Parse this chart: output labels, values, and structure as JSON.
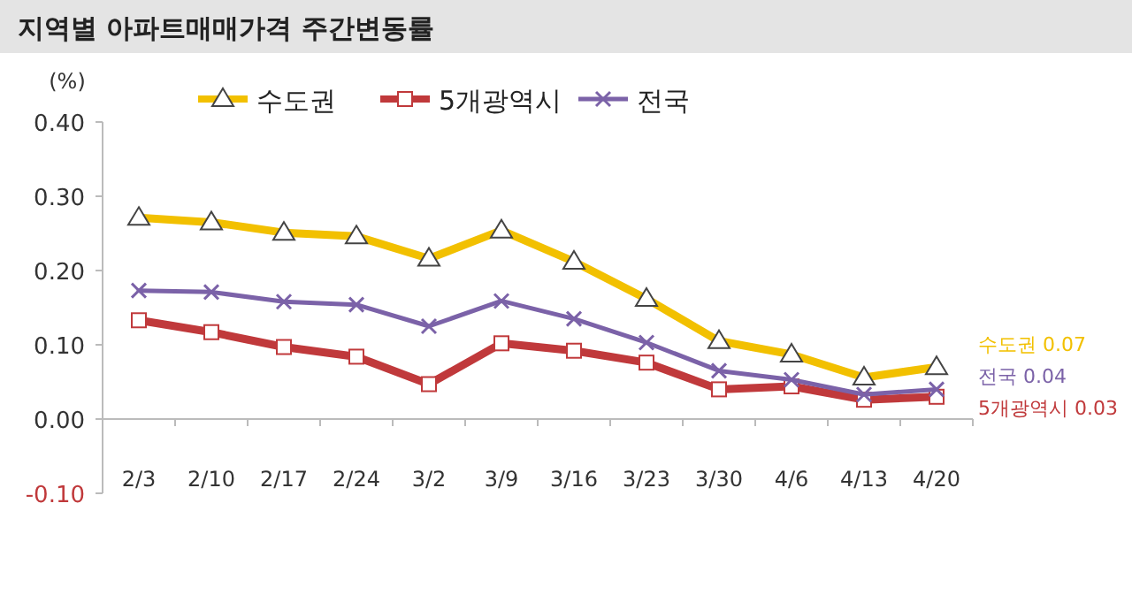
{
  "chart_data": {
    "type": "line",
    "title": "지역별 아파트매매가격 주간변동률",
    "ylabel": "(%)",
    "categories": [
      "2/3",
      "2/10",
      "2/17",
      "2/24",
      "3/2",
      "3/9",
      "3/16",
      "3/23",
      "3/30",
      "4/6",
      "4/13",
      "4/20"
    ],
    "series": [
      {
        "name": "수도권",
        "color": "#f2c000",
        "marker": "triangle",
        "values": [
          0.271,
          0.265,
          0.251,
          0.246,
          0.216,
          0.254,
          0.212,
          0.162,
          0.105,
          0.087,
          0.056,
          0.07
        ]
      },
      {
        "name": "5개광역시",
        "color": "#c0393b",
        "marker": "square",
        "values": [
          0.133,
          0.117,
          0.097,
          0.084,
          0.047,
          0.102,
          0.092,
          0.076,
          0.04,
          0.044,
          0.026,
          0.03
        ]
      },
      {
        "name": "전국",
        "color": "#7b62a8",
        "marker": "cross",
        "values": [
          0.173,
          0.171,
          0.158,
          0.154,
          0.125,
          0.159,
          0.135,
          0.103,
          0.065,
          0.053,
          0.033,
          0.04
        ]
      }
    ],
    "ylim": [
      -0.1,
      0.4
    ],
    "yticks": [
      {
        "value": -0.1,
        "label": "-0.10"
      },
      {
        "value": 0,
        "label": "0.00"
      },
      {
        "value": 0.1,
        "label": "0.10"
      },
      {
        "value": 0.2,
        "label": "0.20"
      },
      {
        "value": 0.3,
        "label": "0.30"
      },
      {
        "value": 0.4,
        "label": "0.40"
      }
    ],
    "legend": "top",
    "annotations": [
      {
        "text": "수도권 0.07",
        "x": "4/20",
        "y": 0.07
      },
      {
        "text": "전국 0.04",
        "x": "4/20",
        "y": 0.04
      },
      {
        "text": "5개광역시 0.03",
        "x": "4/20",
        "y": 0.03
      }
    ]
  }
}
